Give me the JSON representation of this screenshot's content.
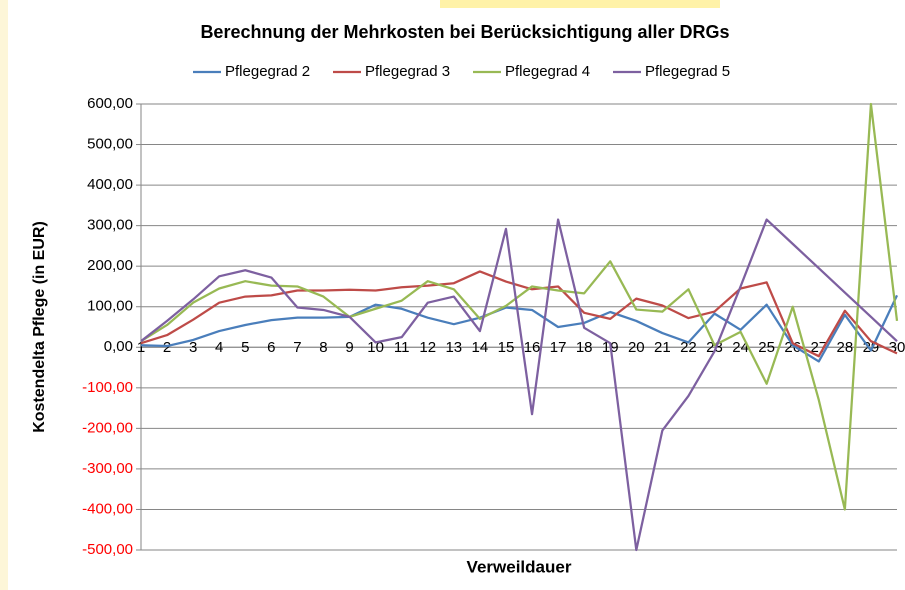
{
  "chart_data": {
    "type": "line",
    "title": "Berechnung der Mehrkosten bei Berücksichtigung aller DRGs",
    "x_label": "Verweildauer",
    "y_label": "Kostendelta Pflege (in EUR)",
    "categories": [
      "1",
      "2",
      "3",
      "4",
      "5",
      "6",
      "7",
      "8",
      "9",
      "10",
      "11",
      "12",
      "13",
      "14",
      "15",
      "16",
      "17",
      "18",
      "19",
      "20",
      "21",
      "22",
      "23",
      "24",
      "25",
      "26",
      "27",
      "28",
      "29",
      "30"
    ],
    "series": [
      {
        "name": "Pflegegrad 2",
        "color": "#4a7ebb",
        "values": [
          5,
          3,
          18,
          40,
          55,
          67,
          73,
          73,
          75,
          105,
          95,
          73,
          57,
          73,
          98,
          92,
          50,
          60,
          87,
          65,
          35,
          12,
          83,
          43,
          105,
          5,
          -35,
          80,
          -8,
          128
        ]
      },
      {
        "name": "Pflegegrad 3",
        "color": "#be4b48",
        "values": [
          10,
          30,
          68,
          110,
          125,
          128,
          140,
          140,
          142,
          140,
          148,
          152,
          158,
          187,
          162,
          143,
          150,
          85,
          70,
          120,
          103,
          72,
          88,
          145,
          160,
          10,
          -22,
          90,
          15,
          -15
        ]
      },
      {
        "name": "Pflegegrad 4",
        "color": "#98b954",
        "values": [
          15,
          55,
          110,
          145,
          163,
          152,
          150,
          125,
          75,
          95,
          115,
          163,
          143,
          70,
          102,
          150,
          140,
          133,
          212,
          93,
          88,
          143,
          5,
          38,
          -90,
          100,
          -130,
          -400,
          600,
          65
        ]
      },
      {
        "name": "Pflegegrad 5",
        "color": "#7d60a0",
        "values": [
          15,
          65,
          118,
          175,
          190,
          172,
          98,
          92,
          75,
          12,
          25,
          110,
          125,
          40,
          292,
          -165,
          315,
          48,
          10,
          -500,
          -205,
          -120,
          -10,
          150,
          315,
          255,
          195,
          135,
          75,
          15
        ]
      }
    ],
    "ylim": [
      -500,
      600
    ],
    "yticks": [
      {
        "value": -500,
        "label": "-500,00"
      },
      {
        "value": -400,
        "label": "-400,00"
      },
      {
        "value": -300,
        "label": "-300,00"
      },
      {
        "value": -200,
        "label": "-200,00"
      },
      {
        "value": -100,
        "label": "-100,00"
      },
      {
        "value": 0,
        "label": "0,00"
      },
      {
        "value": 100,
        "label": "100,00"
      },
      {
        "value": 200,
        "label": "200,00"
      },
      {
        "value": 300,
        "label": "300,00"
      },
      {
        "value": 400,
        "label": "400,00"
      },
      {
        "value": 500,
        "label": "500,00"
      },
      {
        "value": 600,
        "label": "600,00"
      }
    ],
    "grid": true,
    "negative_tick_color": "#ff0000",
    "legend": "top"
  }
}
